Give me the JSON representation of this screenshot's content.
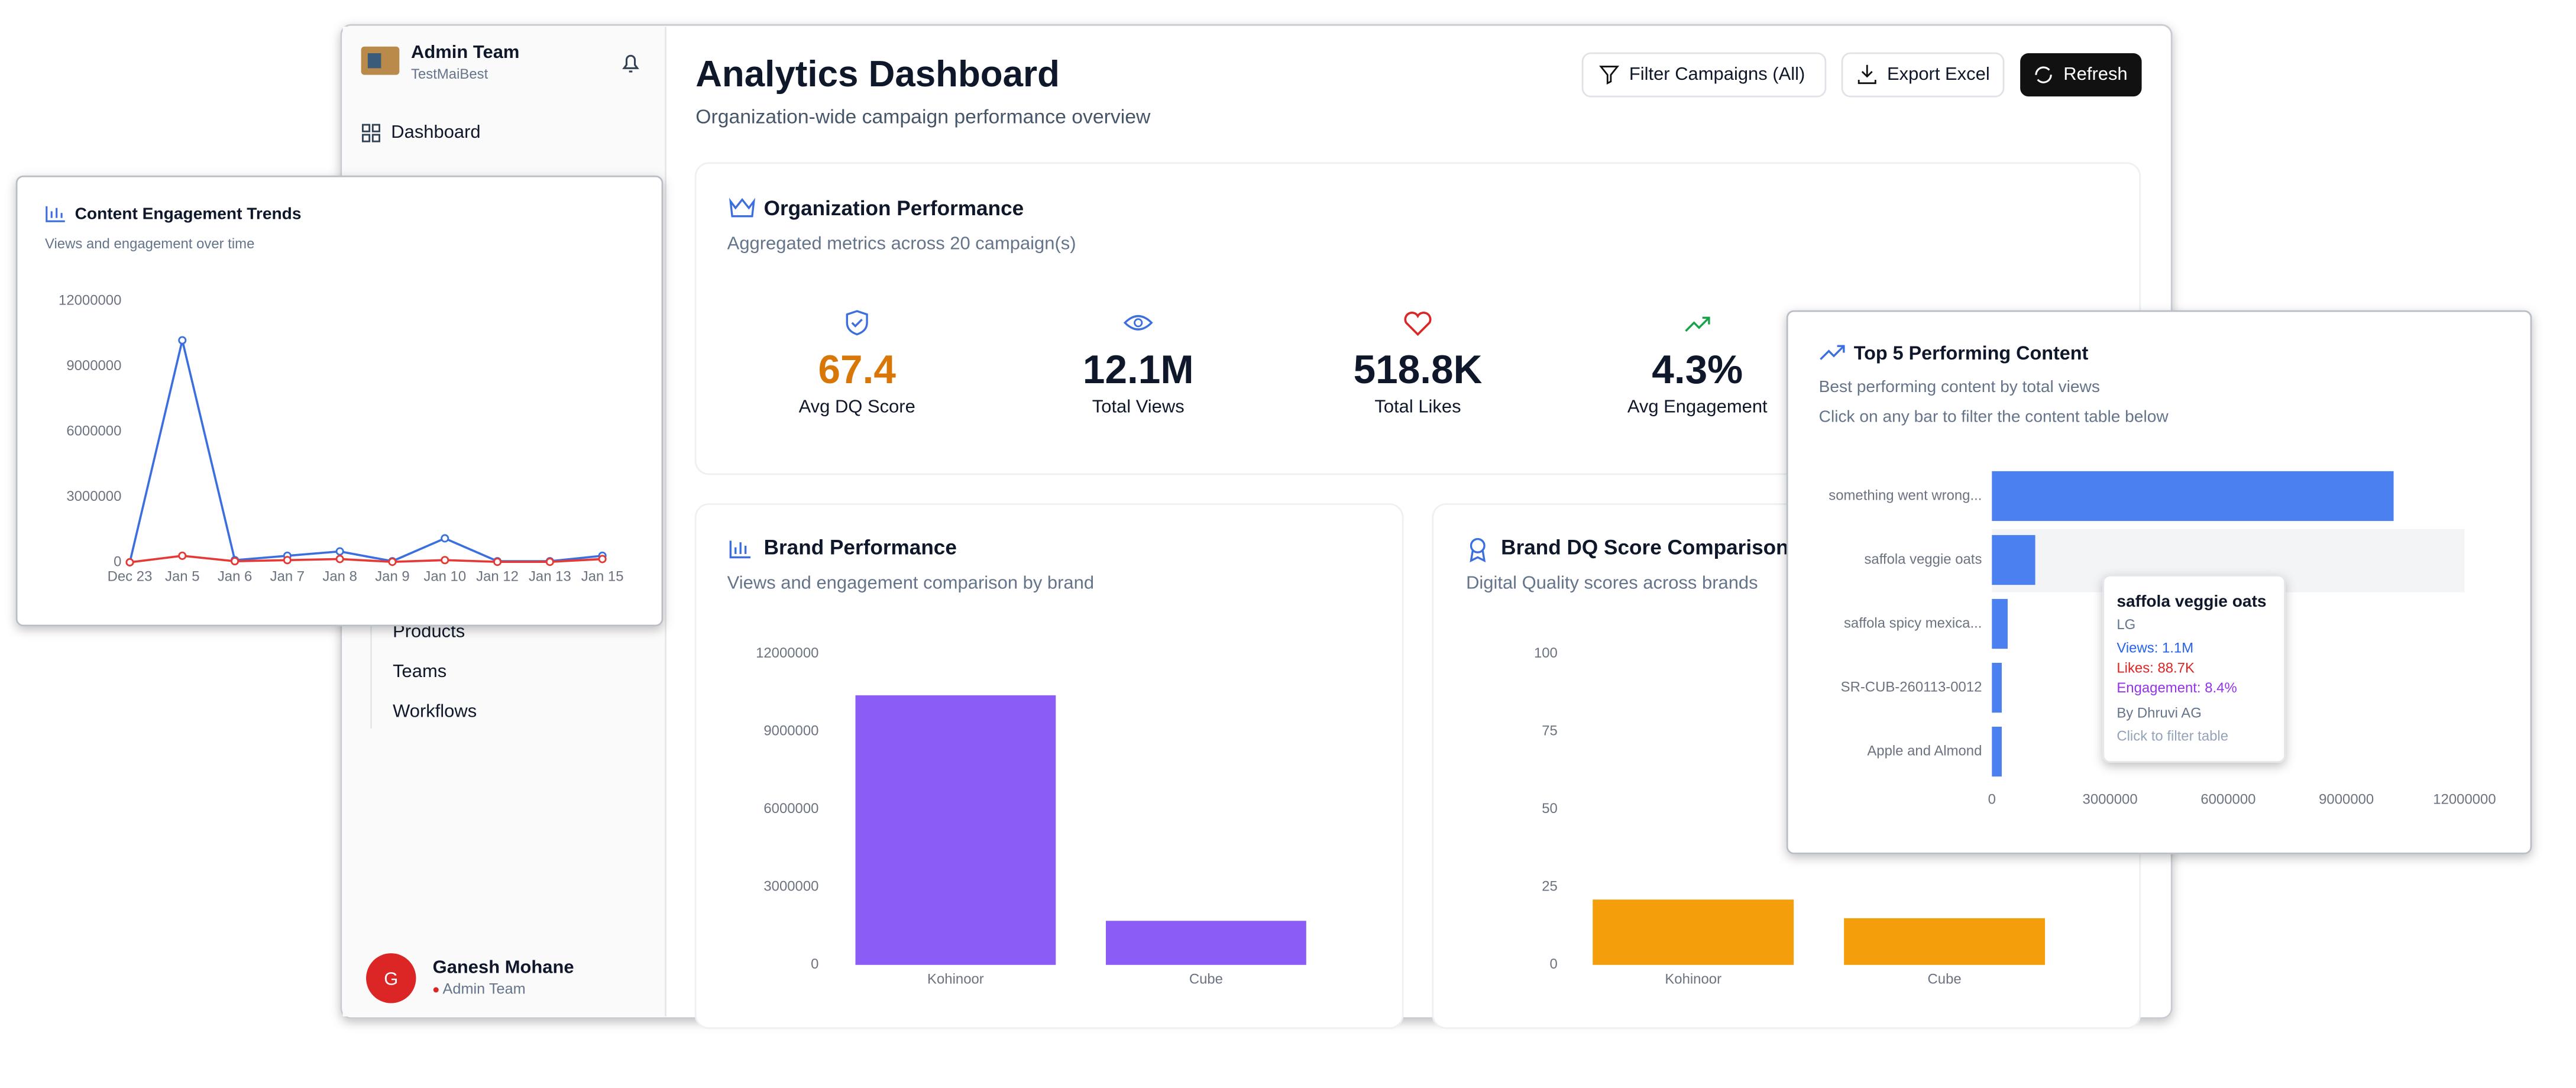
{
  "sidebar": {
    "org_name": "Admin Team",
    "org_sub": "TestMaiBest",
    "nav": [
      "Dashboard"
    ],
    "sub_nav": [
      "Products",
      "Teams",
      "Workflows"
    ],
    "user": {
      "initial": "G",
      "name": "Ganesh Mohane",
      "role": "Admin Team"
    }
  },
  "header": {
    "title": "Analytics Dashboard",
    "subtitle": "Organization-wide campaign performance overview",
    "buttons": [
      "Filter Campaigns (All)",
      "Export Excel",
      "Refresh"
    ]
  },
  "org_performance": {
    "title": "Organization Performance",
    "subtitle": "Aggregated metrics across 20 campaign(s)",
    "metrics": [
      {
        "value": "67.4",
        "label": "Avg DQ Score"
      },
      {
        "value": "12.1M",
        "label": "Total Views"
      },
      {
        "value": "518.8K",
        "label": "Total Likes"
      },
      {
        "value": "4.3%",
        "label": "Avg Engagement"
      }
    ]
  },
  "chart_data": [
    {
      "type": "line",
      "title": "Content Engagement Trends",
      "subtitle": "Views and engagement over time",
      "categories": [
        "Dec 23",
        "Jan 5",
        "Jan 6",
        "Jan 7",
        "Jan 8",
        "Jan 9",
        "Jan 10",
        "Jan 12",
        "Jan 13",
        "Jan 15"
      ],
      "series": [
        {
          "color": "#3b6fe0",
          "values": [
            0,
            10200000,
            100000,
            300000,
            500000,
            50000,
            1100000,
            50000,
            50000,
            300000
          ]
        },
        {
          "color": "#e53935",
          "values": [
            0,
            300000,
            50000,
            100000,
            150000,
            20000,
            100000,
            20000,
            20000,
            150000
          ]
        }
      ],
      "ylim": [
        0,
        12000000
      ],
      "yticks": [
        0,
        3000000,
        6000000,
        9000000,
        12000000
      ]
    },
    {
      "type": "bar",
      "title": "Brand Performance",
      "subtitle": "Views and engagement comparison by brand",
      "categories": [
        "Kohinoor",
        "Cube"
      ],
      "values": [
        10400000,
        1700000
      ],
      "color": "#8b5cf6",
      "ylim": [
        0,
        12000000
      ],
      "yticks": [
        0,
        3000000,
        6000000,
        9000000,
        12000000
      ]
    },
    {
      "type": "bar",
      "title": "Brand DQ Score Comparison",
      "subtitle": "Digital Quality scores across brands",
      "categories": [
        "Kohinoor",
        "Cube"
      ],
      "values": [
        21,
        15
      ],
      "color": "#f59e0b",
      "ylim": [
        0,
        100
      ],
      "yticks": [
        0,
        25,
        50,
        75,
        100
      ]
    },
    {
      "type": "hbar",
      "title": "Top 5 Performing Content",
      "subtitle": "Best performing content by total views",
      "note": "Click on any bar to filter the content table below",
      "categories": [
        "something went wrong...",
        "saffola veggie oats",
        "saffola spicy mexica...",
        "SR-CUB-260113-0012",
        "Apple and Almond"
      ],
      "values": [
        10200000,
        1100000,
        400000,
        250000,
        250000
      ],
      "color": "#4a80f0",
      "xlim": [
        0,
        12000000
      ],
      "xticks": [
        0,
        3000000,
        6000000,
        9000000,
        12000000
      ],
      "tooltip": {
        "title": "saffola veggie oats",
        "brand": "LG",
        "views": "Views: 1.1M",
        "likes": "Likes: 88.7K",
        "engagement": "Engagement: 8.4%",
        "author": "By Dhruvi AG",
        "hint": "Click to filter table"
      }
    }
  ]
}
